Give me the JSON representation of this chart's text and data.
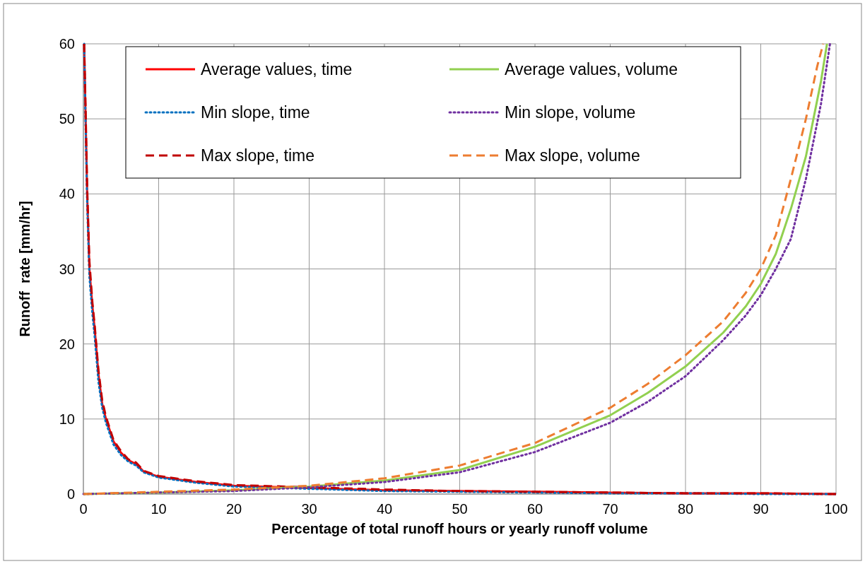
{
  "chart_data": {
    "type": "line",
    "xlabel": "Percentage of total runoff hours or yearly runoff volume",
    "ylabel": "Runoff  rate [mm/hr]",
    "xlim": [
      0,
      100
    ],
    "ylim": [
      0,
      60
    ],
    "xticks": [
      0,
      10,
      20,
      30,
      40,
      50,
      60,
      70,
      80,
      90,
      100
    ],
    "yticks": [
      0,
      10,
      20,
      30,
      40,
      50,
      60
    ],
    "grid": true,
    "legend": "top",
    "series": [
      {
        "name": "Average values, time",
        "color": "#ff0000",
        "line_style": "solid",
        "x": [
          0.1,
          0.3,
          0.5,
          0.8,
          1.2,
          1.5,
          2,
          2.5,
          3,
          4,
          5,
          6,
          7,
          8,
          10,
          15,
          20,
          30,
          40,
          50,
          60,
          70,
          80,
          90,
          100
        ],
        "values": [
          60,
          50,
          40,
          30,
          25,
          22,
          16,
          12,
          10,
          7,
          5.5,
          4.5,
          4,
          3,
          2.3,
          1.6,
          1.1,
          0.8,
          0.5,
          0.4,
          0.3,
          0.2,
          0.1,
          0.1,
          0
        ]
      },
      {
        "name": "Min slope, time",
        "color": "#0070c0",
        "line_style": "dotted",
        "x": [
          0.1,
          0.3,
          0.5,
          0.8,
          1.2,
          1.5,
          2,
          2.5,
          3,
          4,
          5,
          6,
          7,
          8,
          10,
          15,
          20,
          30,
          40,
          50,
          60,
          70,
          80,
          90,
          100
        ],
        "values": [
          60,
          49,
          39,
          29,
          24,
          21,
          15,
          11.5,
          9.5,
          6.6,
          5.2,
          4.3,
          3.8,
          2.9,
          2.2,
          1.5,
          1,
          0.7,
          0.4,
          0.3,
          0.2,
          0.1,
          0.1,
          0,
          0
        ]
      },
      {
        "name": "Max slope, time",
        "color": "#c00000",
        "line_style": "dashed",
        "x": [
          0.1,
          0.3,
          0.5,
          0.8,
          1.2,
          1.5,
          2,
          2.5,
          3,
          4,
          5,
          6,
          7,
          8,
          10,
          15,
          20,
          30,
          40,
          50,
          60,
          70,
          80,
          90,
          100
        ],
        "values": [
          60,
          51,
          41,
          31,
          25.5,
          22.5,
          16.5,
          12.5,
          10.3,
          7.2,
          5.7,
          4.6,
          4.2,
          3.1,
          2.4,
          1.7,
          1.2,
          0.9,
          0.6,
          0.4,
          0.3,
          0.2,
          0.1,
          0.1,
          0
        ]
      },
      {
        "name": "Average values, volume",
        "color": "#92d050",
        "line_style": "solid",
        "x": [
          0,
          10,
          20,
          30,
          40,
          50,
          60,
          70,
          75,
          80,
          85,
          88,
          90,
          92,
          94,
          96,
          97,
          98,
          98.8
        ],
        "values": [
          0,
          0.2,
          0.5,
          1,
          1.8,
          3.2,
          6.3,
          10.5,
          13.5,
          17,
          21.5,
          25,
          28,
          32,
          38,
          45,
          50,
          55,
          60
        ]
      },
      {
        "name": "Min slope, volume",
        "color": "#7030a0",
        "line_style": "dotted",
        "x": [
          0,
          10,
          20,
          30,
          40,
          50,
          60,
          70,
          75,
          80,
          85,
          88,
          90,
          92,
          94,
          96,
          98,
          99.2
        ],
        "values": [
          0,
          0.2,
          0.4,
          0.9,
          1.6,
          2.9,
          5.6,
          9.5,
          12.3,
          15.7,
          20.5,
          23.8,
          26.5,
          30,
          34,
          42,
          52,
          60
        ]
      },
      {
        "name": "Max slope, volume",
        "color": "#ed7d31",
        "line_style": "dashed",
        "x": [
          0,
          10,
          20,
          30,
          40,
          50,
          60,
          70,
          75,
          80,
          85,
          88,
          90,
          92,
          94,
          96,
          97.5,
          98.3
        ],
        "values": [
          0,
          0.3,
          0.6,
          1.1,
          2.1,
          3.8,
          6.8,
          11.5,
          14.7,
          18.5,
          23,
          26.8,
          30,
          34.5,
          42,
          50,
          57,
          60
        ]
      }
    ]
  }
}
